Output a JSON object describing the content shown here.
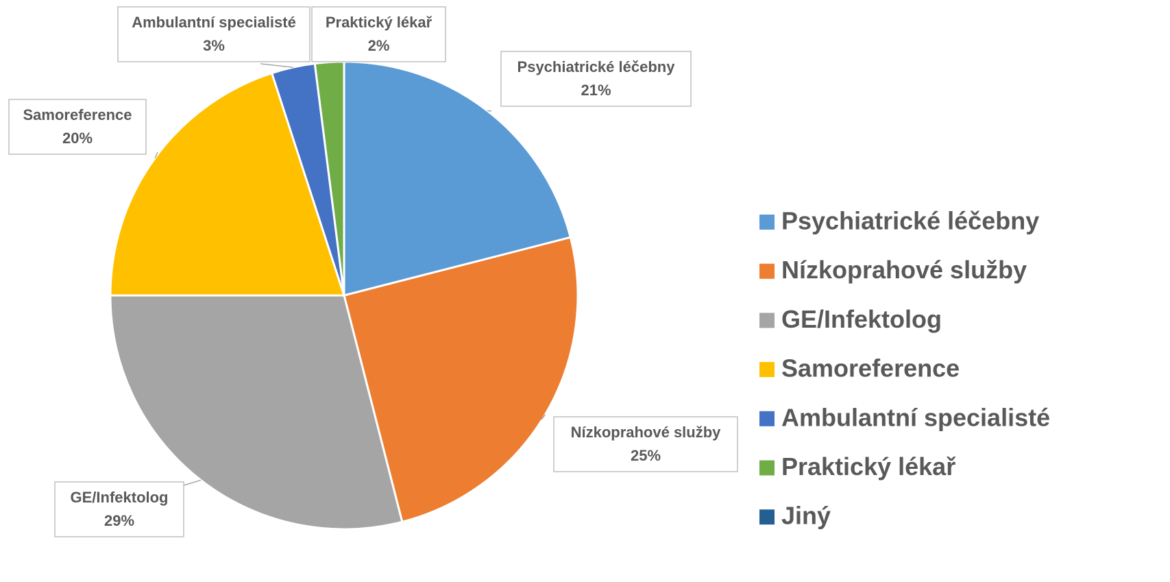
{
  "chart_data": {
    "type": "pie",
    "categories": [
      "Psychiatrické léčebny",
      "Nízkoprahové služby",
      "GE/Infektolog",
      "Samoreference",
      "Ambulantní specialisté",
      "Praktický lékař",
      "Jiný"
    ],
    "values": [
      21,
      25,
      29,
      20,
      3,
      2,
      0
    ],
    "value_labels": [
      "21%",
      "25%",
      "29%",
      "20%",
      "3%",
      "2%",
      null
    ],
    "colors": [
      "#5b9bd5",
      "#ed7d31",
      "#a5a5a5",
      "#ffc000",
      "#4472c4",
      "#70ad47",
      "#255e91"
    ],
    "legend": "right"
  }
}
